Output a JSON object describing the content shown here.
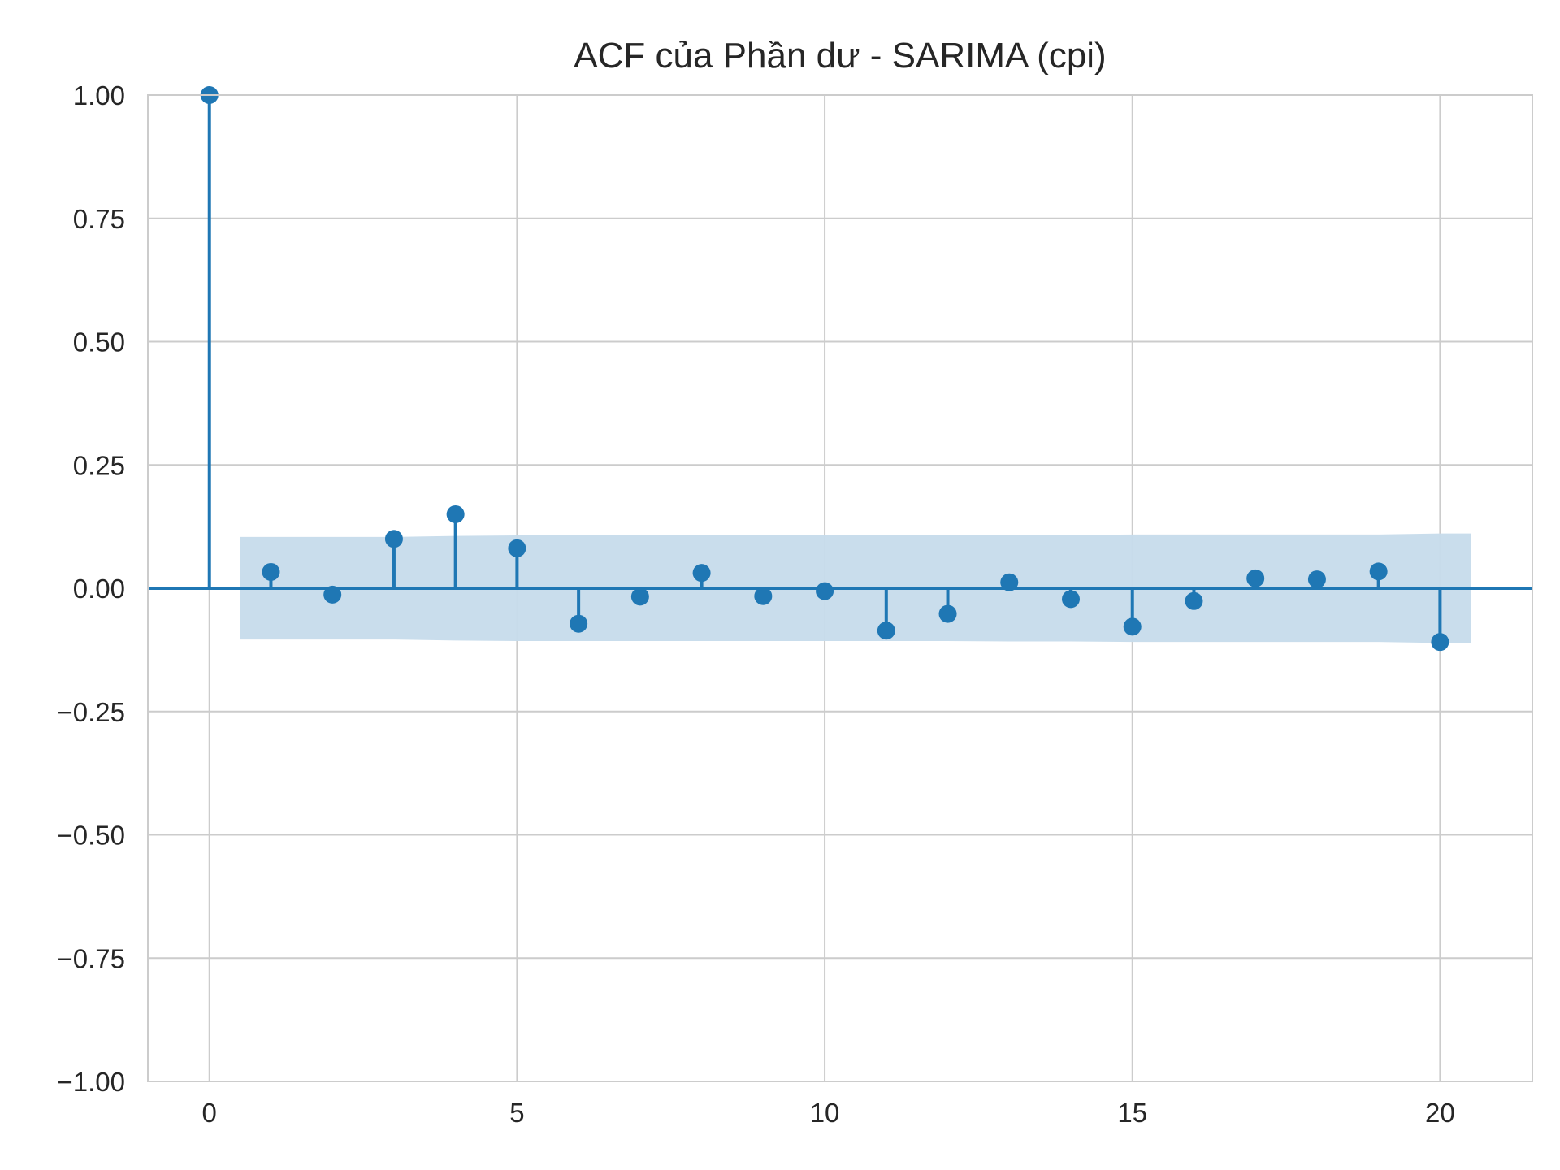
{
  "chart_data": {
    "type": "stem",
    "title": "ACF của Phần dư - SARIMA (cpi)",
    "xlabel": "",
    "ylabel": "",
    "xlim": [
      -1,
      21.5
    ],
    "ylim": [
      -1.0,
      1.0
    ],
    "x_ticks": [
      0,
      5,
      10,
      15,
      20
    ],
    "y_ticks": [
      -1.0,
      -0.75,
      -0.5,
      -0.25,
      0.0,
      0.25,
      0.5,
      0.75,
      1.0
    ],
    "y_tick_labels": [
      "−1.00",
      "−0.75",
      "−0.50",
      "−0.25",
      "0.00",
      "0.25",
      "0.50",
      "0.75",
      "1.00"
    ],
    "x_tick_labels": [
      "0",
      "5",
      "10",
      "15",
      "20"
    ],
    "grid": true,
    "lags": [
      0,
      1,
      2,
      3,
      4,
      5,
      6,
      7,
      8,
      9,
      10,
      11,
      12,
      13,
      14,
      15,
      16,
      17,
      18,
      19,
      20
    ],
    "acf": [
      1.0,
      0.033,
      -0.013,
      0.1,
      0.15,
      0.081,
      -0.072,
      -0.017,
      0.031,
      -0.016,
      -0.006,
      -0.086,
      -0.052,
      0.012,
      -0.022,
      -0.078,
      -0.026,
      0.02,
      0.018,
      0.034,
      -0.109
    ],
    "confidence_band": {
      "x": [
        0.5,
        1,
        2,
        3,
        4,
        5,
        6,
        7,
        8,
        9,
        10,
        11,
        12,
        13,
        14,
        15,
        16,
        17,
        18,
        19,
        20,
        20.5
      ],
      "upper": [
        0.104,
        0.104,
        0.104,
        0.104,
        0.106,
        0.107,
        0.107,
        0.107,
        0.107,
        0.107,
        0.107,
        0.107,
        0.107,
        0.108,
        0.108,
        0.109,
        0.109,
        0.109,
        0.109,
        0.109,
        0.111,
        0.111
      ],
      "lower": [
        -0.104,
        -0.104,
        -0.104,
        -0.104,
        -0.106,
        -0.107,
        -0.107,
        -0.107,
        -0.107,
        -0.107,
        -0.107,
        -0.107,
        -0.107,
        -0.108,
        -0.108,
        -0.109,
        -0.109,
        -0.109,
        -0.109,
        -0.109,
        -0.111,
        -0.111
      ]
    },
    "colors": {
      "stem": "#1f77b4",
      "band": "#c6dbeb",
      "grid": "#cccccc",
      "text": "#262626"
    }
  }
}
